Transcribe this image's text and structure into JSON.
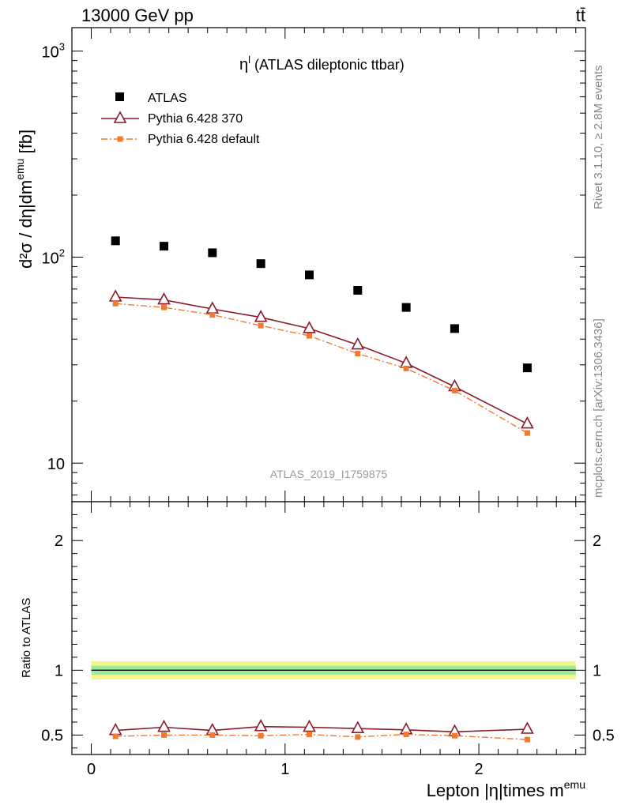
{
  "header": {
    "energy_label": "13000 GeV pp",
    "process_label": "tt̄"
  },
  "side_labels": {
    "rivet": "Rivet 3.1.10, ≥ 2.8M events",
    "mcplots": "mcplots.cern.ch [arXiv:1306.3436]"
  },
  "chart_data": [
    {
      "type": "scatter",
      "panel": "main",
      "title": "η",
      "title_superscript": "l",
      "title_suffix": " (ATLAS dileptonic ttbar)",
      "ylabel": "d²σ / dη|dm",
      "ylabel_superscript": "emu",
      "ylabel_suffix": " [fb]",
      "watermark": "ATLAS_2019_I1759875",
      "yscale": "log",
      "ylim": [
        6.5,
        1300
      ],
      "xlim": [
        -0.1,
        2.55
      ],
      "y_tick_labels": [
        "10",
        "10",
        "10"
      ],
      "y_tick_exponents": [
        "",
        "2",
        "3"
      ],
      "y_tick_values": [
        10,
        100,
        1000
      ],
      "legend_position": "top-left",
      "x": [
        0.125,
        0.375,
        0.625,
        0.875,
        1.125,
        1.375,
        1.625,
        1.875,
        2.25
      ],
      "series": [
        {
          "name": "ATLAS",
          "color": "#000000",
          "marker": "square",
          "values": [
            120,
            113,
            105,
            93,
            82,
            69,
            57,
            45,
            29
          ]
        },
        {
          "name": "Pythia 6.428 370",
          "color": "#8b1a2a",
          "marker": "open-triangle",
          "line": "solid",
          "values": [
            64,
            62,
            56,
            51,
            45,
            37.5,
            30.5,
            23.5,
            15.5
          ]
        },
        {
          "name": "Pythia 6.428 default",
          "color": "#f07a30",
          "marker": "small-square",
          "line": "dash-dot",
          "values": [
            59.5,
            57,
            52.5,
            46.5,
            41.5,
            34,
            28.8,
            22.5,
            14
          ]
        }
      ]
    },
    {
      "type": "line",
      "panel": "ratio",
      "ylabel": "Ratio to ATLAS",
      "xlabel": "Lepton |η|times m",
      "xlabel_superscript": "emu",
      "ylim": [
        0.35,
        2.3
      ],
      "xlim": [
        -0.1,
        2.55
      ],
      "y_ticks": [
        0.5,
        1,
        2
      ],
      "y_tick_labels": [
        "0.5",
        "1",
        "2"
      ],
      "x_ticks": [
        0,
        1,
        2
      ],
      "x_tick_labels": [
        "0",
        "1",
        "2"
      ],
      "band_range": [
        0,
        2.5
      ],
      "band_colors": {
        "outer": "#f3f78a",
        "inner": "#9aed9a"
      },
      "x": [
        0.125,
        0.375,
        0.625,
        0.875,
        1.125,
        1.375,
        1.625,
        1.875,
        2.25
      ],
      "series": [
        {
          "name": "Pythia 6.428 370",
          "color": "#8b1a2a",
          "marker": "open-triangle",
          "values": [
            0.535,
            0.56,
            0.535,
            0.565,
            0.56,
            0.55,
            0.54,
            0.525,
            0.545
          ]
        },
        {
          "name": "Pythia 6.428 default",
          "color": "#f07a30",
          "marker": "small-square",
          "values": [
            0.49,
            0.5,
            0.5,
            0.495,
            0.505,
            0.485,
            0.505,
            0.495,
            0.465
          ]
        }
      ]
    }
  ]
}
